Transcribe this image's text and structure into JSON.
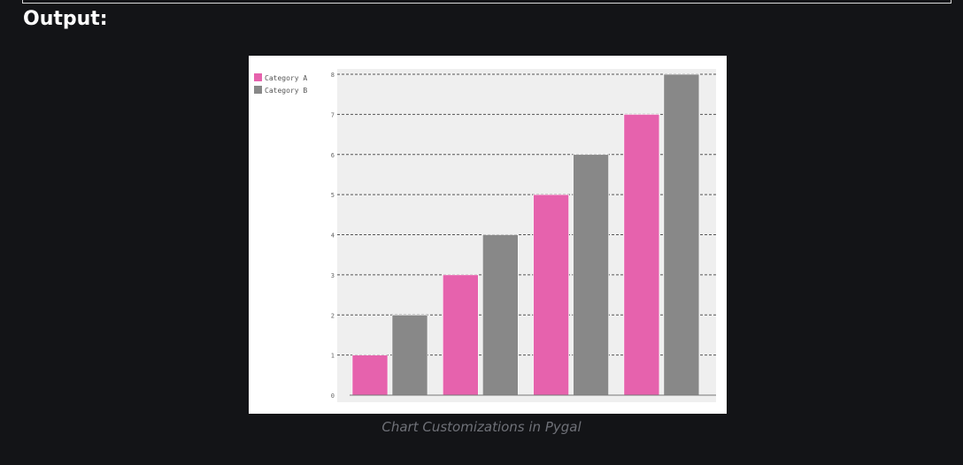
{
  "heading": "Output:",
  "caption": "Chart Customizations in Pygal",
  "colors": {
    "page_background": "#131417",
    "plot_background": "#efefef",
    "category_a": "#e662ad",
    "category_b": "#888888",
    "gridline": "#555555"
  },
  "chart_data": {
    "type": "bar",
    "title": "",
    "xlabel": "",
    "ylabel": "",
    "categories": [
      "",
      "",
      "",
      ""
    ],
    "series": [
      {
        "name": "Category A",
        "values": [
          1,
          3,
          5,
          7
        ]
      },
      {
        "name": "Category B",
        "values": [
          2,
          4,
          6,
          8
        ]
      }
    ],
    "ylim": [
      0,
      8
    ],
    "yticks": [
      0,
      1,
      2,
      3,
      4,
      5,
      6,
      7,
      8
    ],
    "grid": "horizontal-dashed",
    "legend_position": "top-left"
  }
}
